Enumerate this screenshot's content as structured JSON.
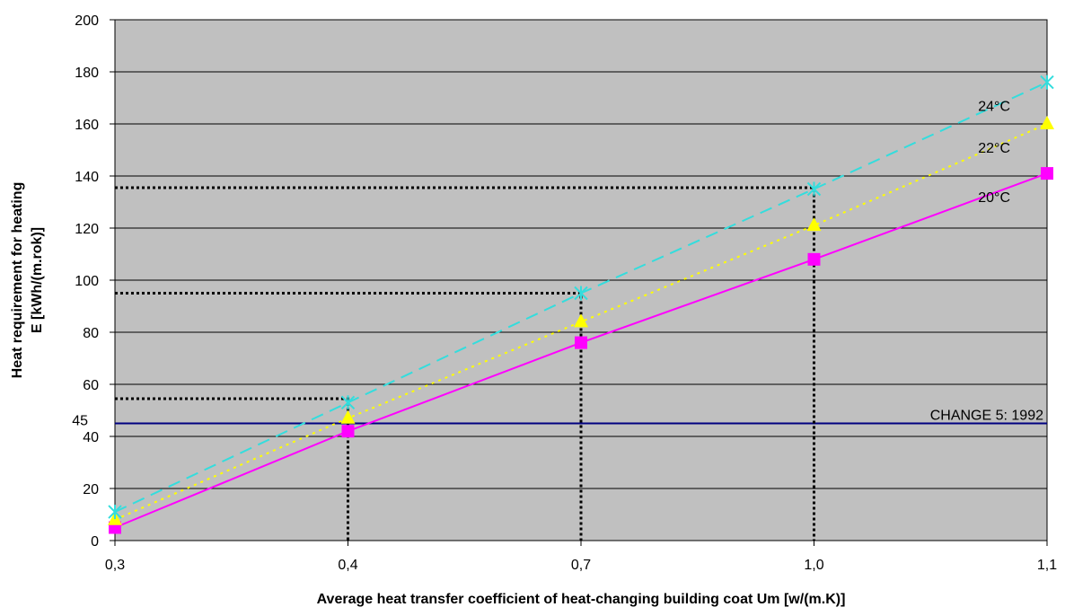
{
  "chart_data": {
    "type": "line",
    "xlabel": "Average heat transfer coefficient of heat-changing building coat Um [w/(m.K)]",
    "ylabel_line1": "Heat requirement for heating",
    "ylabel_line2": "E [kWh/(m.rok)]",
    "categories": [
      "0,3",
      "0,4",
      "0,7",
      "1,0",
      "1,1"
    ],
    "ylim": [
      0,
      200
    ],
    "yticks": [
      "0",
      "20",
      "40",
      "60",
      "80",
      "100",
      "120",
      "140",
      "160",
      "180",
      "200"
    ],
    "grid": true,
    "plot_background": "#c0c0c0",
    "series": [
      {
        "name": "20°C",
        "color": "#ff00ff",
        "marker": "square",
        "dash": "solid",
        "values": [
          5,
          42,
          76,
          108,
          141
        ]
      },
      {
        "name": "22°C",
        "color": "#ffff00",
        "marker": "triangle",
        "dash": "dotted",
        "values": [
          8,
          47,
          84,
          121,
          160
        ]
      },
      {
        "name": "24°C",
        "color": "#33dddd",
        "marker": "star",
        "dash": "dashed",
        "values": [
          11,
          53,
          95,
          135,
          176
        ]
      }
    ],
    "reference_line": {
      "label": "CHANGE 5: 1992",
      "value": 45,
      "value_label": "45",
      "color": "#000080"
    },
    "guides": [
      {
        "x_index": 1,
        "y": 54.5
      },
      {
        "x_index": 2,
        "y": 95
      },
      {
        "x_index": 3,
        "y": 135.5
      }
    ],
    "guide_color": "#000000"
  }
}
